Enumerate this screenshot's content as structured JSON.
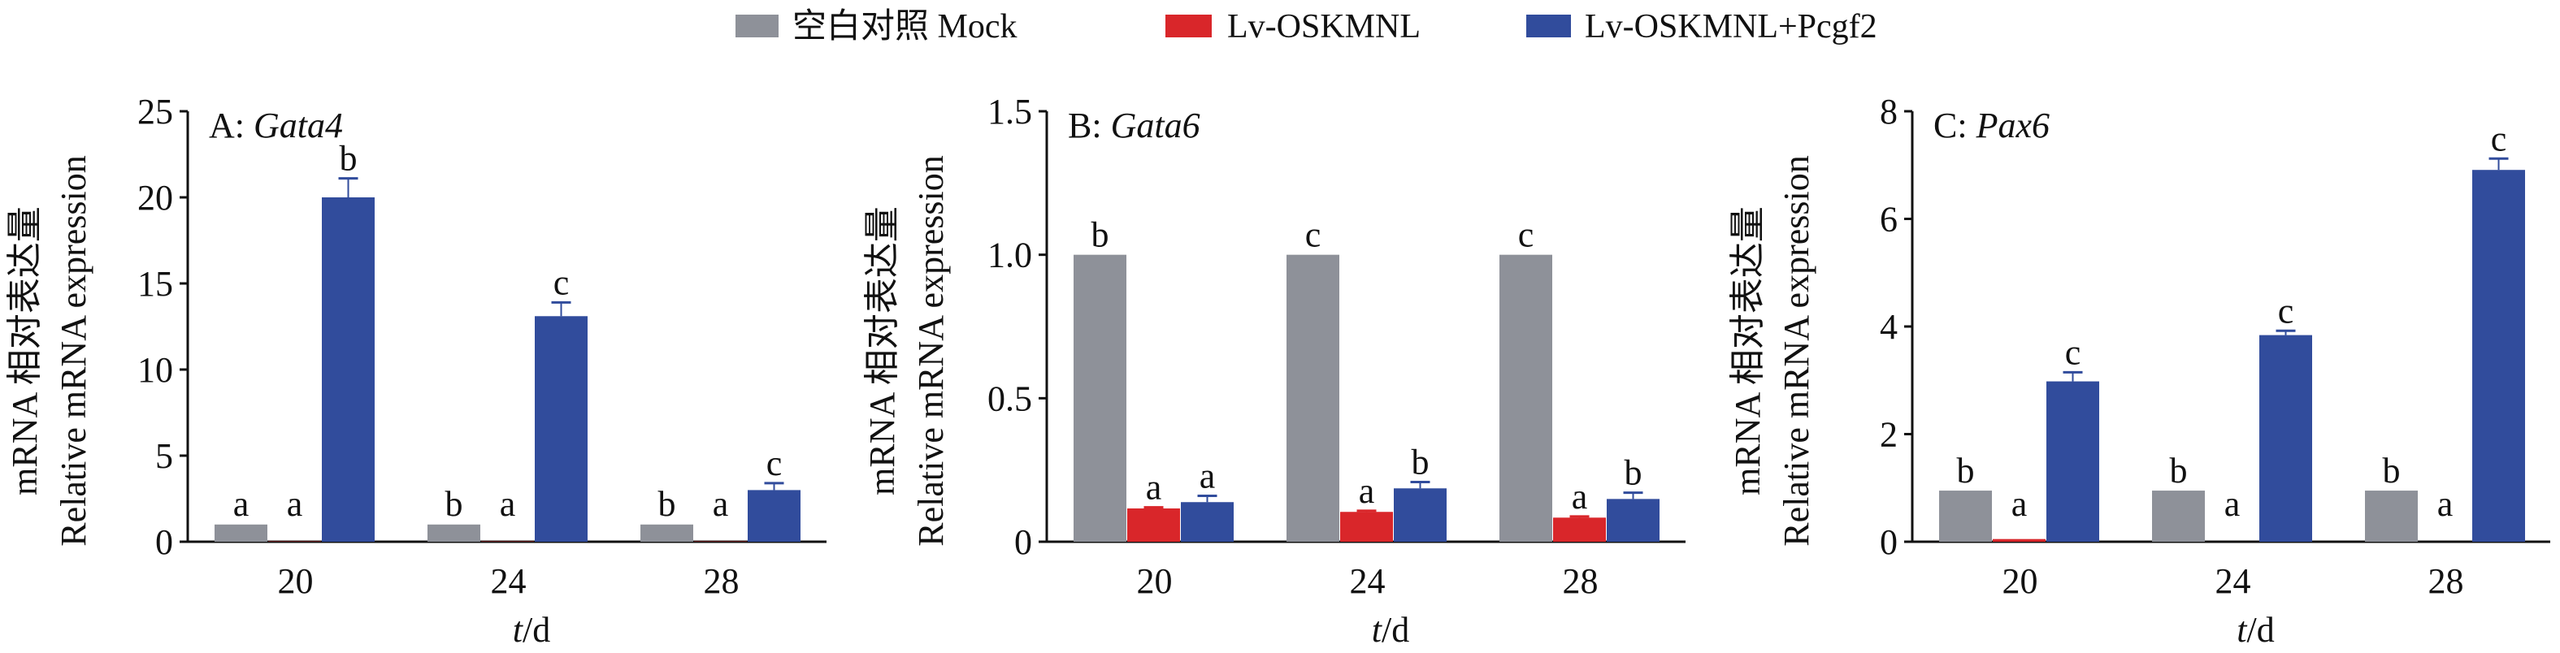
{
  "legend": [
    {
      "label": "空白对照 Mock",
      "color": "#8e9199"
    },
    {
      "label": "Lv-OSKMNL",
      "color": "#d9262a"
    },
    {
      "label": "Lv-OSKMNL+Pcgf2",
      "color": "#314c9c"
    }
  ],
  "chart_data": [
    {
      "type": "bar",
      "panel_prefix": "A: ",
      "title": "Gata4",
      "ylabel_cn": "mRNA 相对表达量",
      "ylabel": "Relative mRNA expression",
      "xlabel_italic": "t",
      "xlabel_unit": "/d",
      "categories": [
        "20",
        "24",
        "28"
      ],
      "ylim": [
        0,
        25
      ],
      "yticks": [
        0,
        5,
        10,
        15,
        20,
        25
      ],
      "series": [
        {
          "name": "空白对照 Mock",
          "values": [
            1.0,
            1.0,
            1.0
          ],
          "errors": [
            0,
            0,
            0
          ],
          "letters": [
            "a",
            "b",
            "b"
          ]
        },
        {
          "name": "Lv-OSKMNL",
          "values": [
            0.02,
            0.02,
            0.02
          ],
          "errors": [
            0,
            0,
            0
          ],
          "letters": [
            "a",
            "a",
            "a"
          ]
        },
        {
          "name": "Lv-OSKMNL+Pcgf2",
          "values": [
            20.0,
            13.1,
            3.0
          ],
          "errors": [
            1.1,
            0.8,
            0.4
          ],
          "letters": [
            "b",
            "c",
            "c"
          ]
        }
      ]
    },
    {
      "type": "bar",
      "panel_prefix": "B: ",
      "title": "Gata6",
      "ylabel_cn": "mRNA 相对表达量",
      "ylabel": "Relative mRNA expression",
      "xlabel_italic": "t",
      "xlabel_unit": "/d",
      "categories": [
        "20",
        "24",
        "28"
      ],
      "ylim": [
        0,
        1.5
      ],
      "yticks": [
        0,
        0.5,
        1.0,
        1.5
      ],
      "ytick_labels": [
        "0",
        "0.5",
        "1.0",
        "1.5"
      ],
      "series": [
        {
          "name": "空白对照 Mock",
          "values": [
            1.0,
            1.0,
            1.0
          ],
          "errors": [
            0,
            0,
            0
          ],
          "letters": [
            "b",
            "c",
            "c"
          ]
        },
        {
          "name": "Lv-OSKMNL",
          "values": [
            0.116,
            0.104,
            0.084
          ],
          "errors": [
            0.004,
            0.004,
            0.004
          ],
          "letters": [
            "a",
            "a",
            "a"
          ]
        },
        {
          "name": "Lv-OSKMNL+Pcgf2",
          "values": [
            0.138,
            0.186,
            0.149
          ],
          "errors": [
            0.022,
            0.022,
            0.022
          ],
          "letters": [
            "a",
            "b",
            "b"
          ]
        }
      ]
    },
    {
      "type": "bar",
      "panel_prefix": "C: ",
      "title": "Pax6",
      "ylabel_cn": "mRNA 相对表达量",
      "ylabel": "Relative mRNA expression",
      "xlabel_italic": "t",
      "xlabel_unit": "/d",
      "categories": [
        "20",
        "24",
        "28"
      ],
      "ylim": [
        0,
        8
      ],
      "yticks": [
        0,
        2,
        4,
        6,
        8
      ],
      "series": [
        {
          "name": "空白对照 Mock",
          "values": [
            0.95,
            0.95,
            0.95
          ],
          "errors": [
            0,
            0,
            0
          ],
          "letters": [
            "b",
            "b",
            "b"
          ]
        },
        {
          "name": "Lv-OSKMNL",
          "values": [
            0.05,
            0.0,
            0.0
          ],
          "errors": [
            0,
            0,
            0
          ],
          "letters": [
            "a",
            "a",
            "a"
          ]
        },
        {
          "name": "Lv-OSKMNL+Pcgf2",
          "values": [
            2.98,
            3.84,
            6.91
          ],
          "errors": [
            0.17,
            0.08,
            0.21
          ],
          "letters": [
            "c",
            "c",
            "c"
          ]
        }
      ]
    }
  ]
}
